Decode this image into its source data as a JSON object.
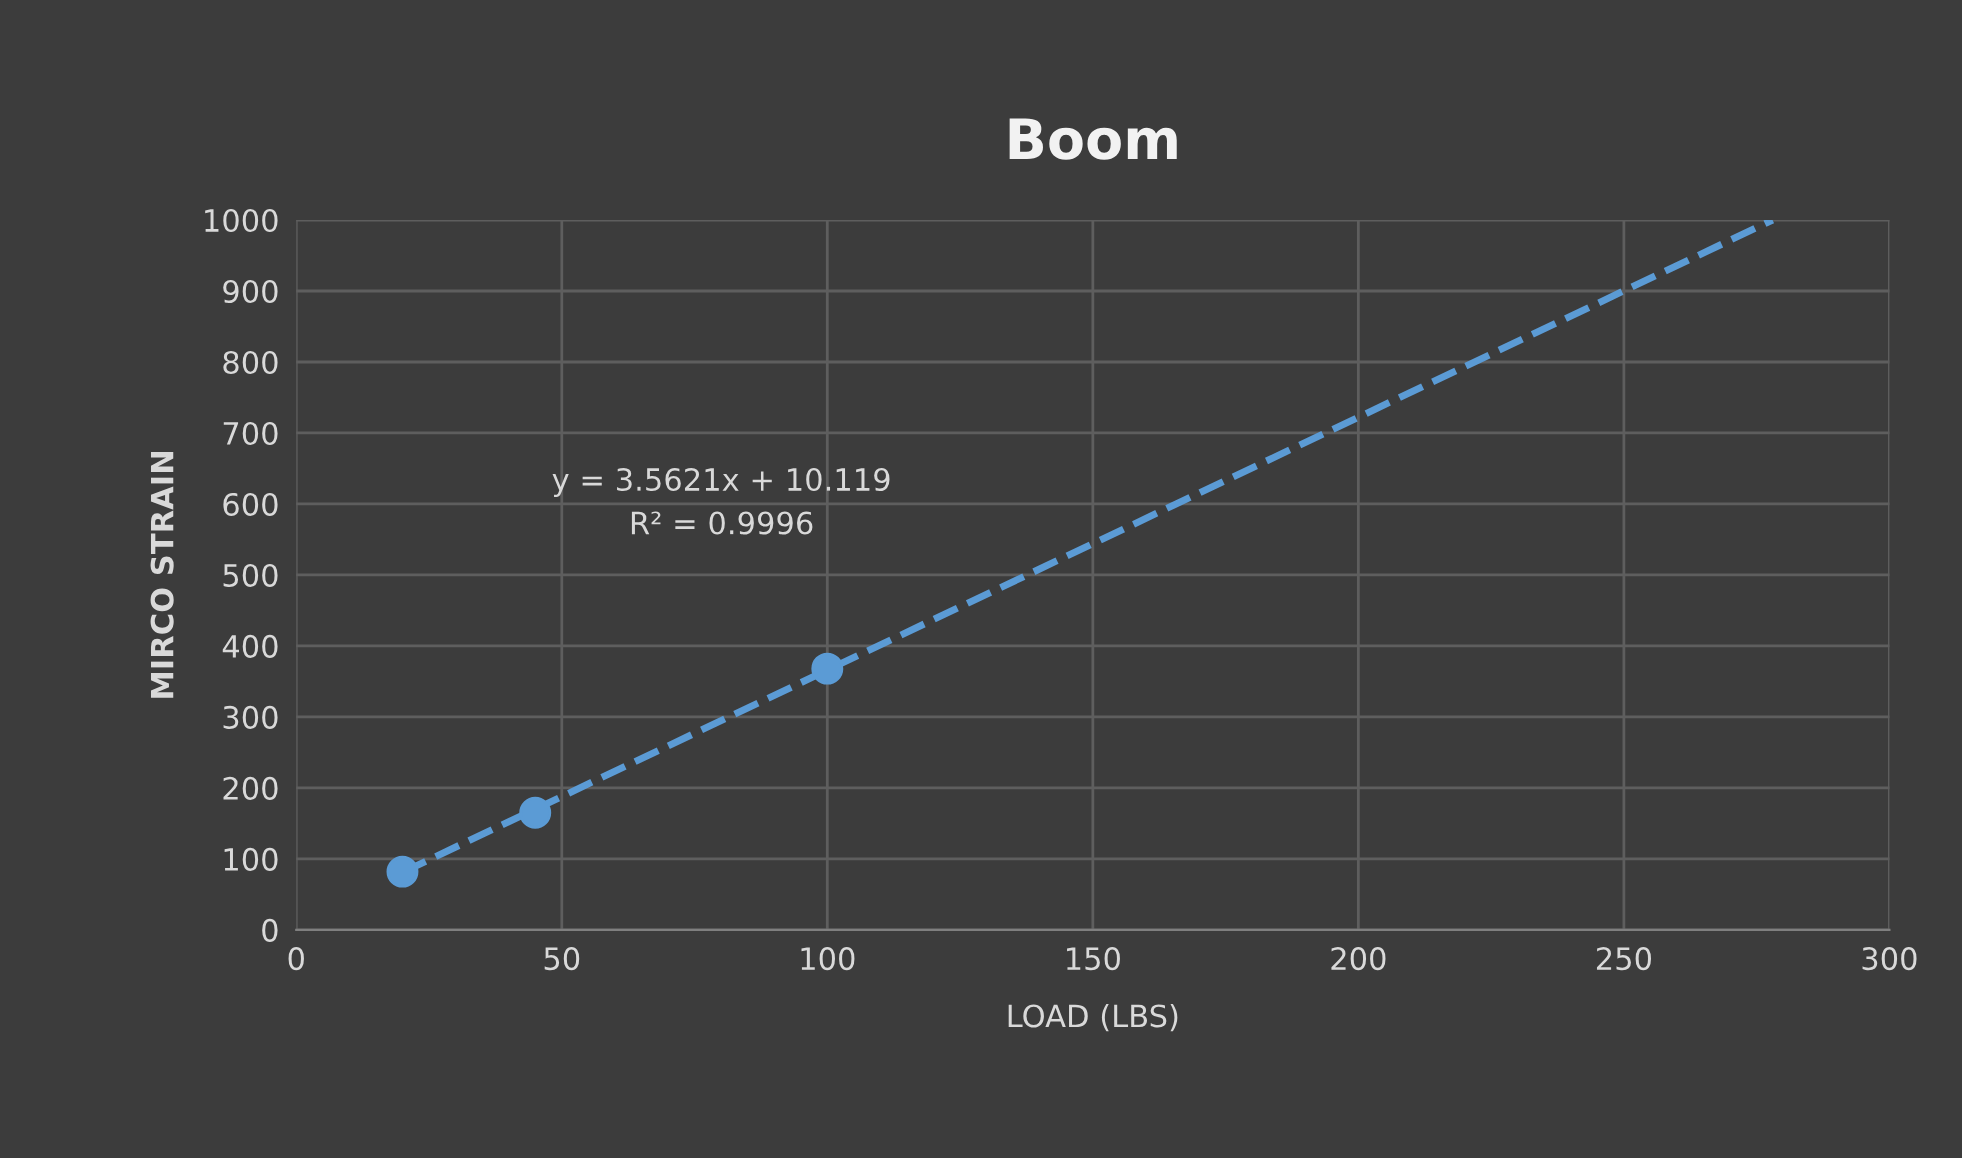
{
  "chart_data": {
    "type": "scatter",
    "title": "Boom",
    "xlabel": "LOAD (LBS)",
    "ylabel": "MIRCO STRAIN",
    "series": [
      {
        "color": "#5b9bd5",
        "x": [
          20,
          45,
          100
        ],
        "values": [
          82,
          165,
          368
        ],
        "marker": "circle"
      },
      {
        "type": "line",
        "color": "#5b9bd5",
        "x": [
          20,
          278
        ],
        "values": [
          81,
          1000
        ],
        "line_style": "dashed",
        "marker": "none"
      }
    ],
    "annotations": [
      "y = 3.5621x + 10.119\nR² = 0.9996"
    ],
    "xlim": [
      0,
      300
    ],
    "xticks": [
      0,
      50,
      100,
      150,
      200,
      250,
      300
    ],
    "ylim": [
      0,
      1000
    ],
    "yticks": [
      0,
      100,
      200,
      300,
      400,
      500,
      600,
      700,
      800,
      900,
      1000
    ],
    "grid": true
  }
}
